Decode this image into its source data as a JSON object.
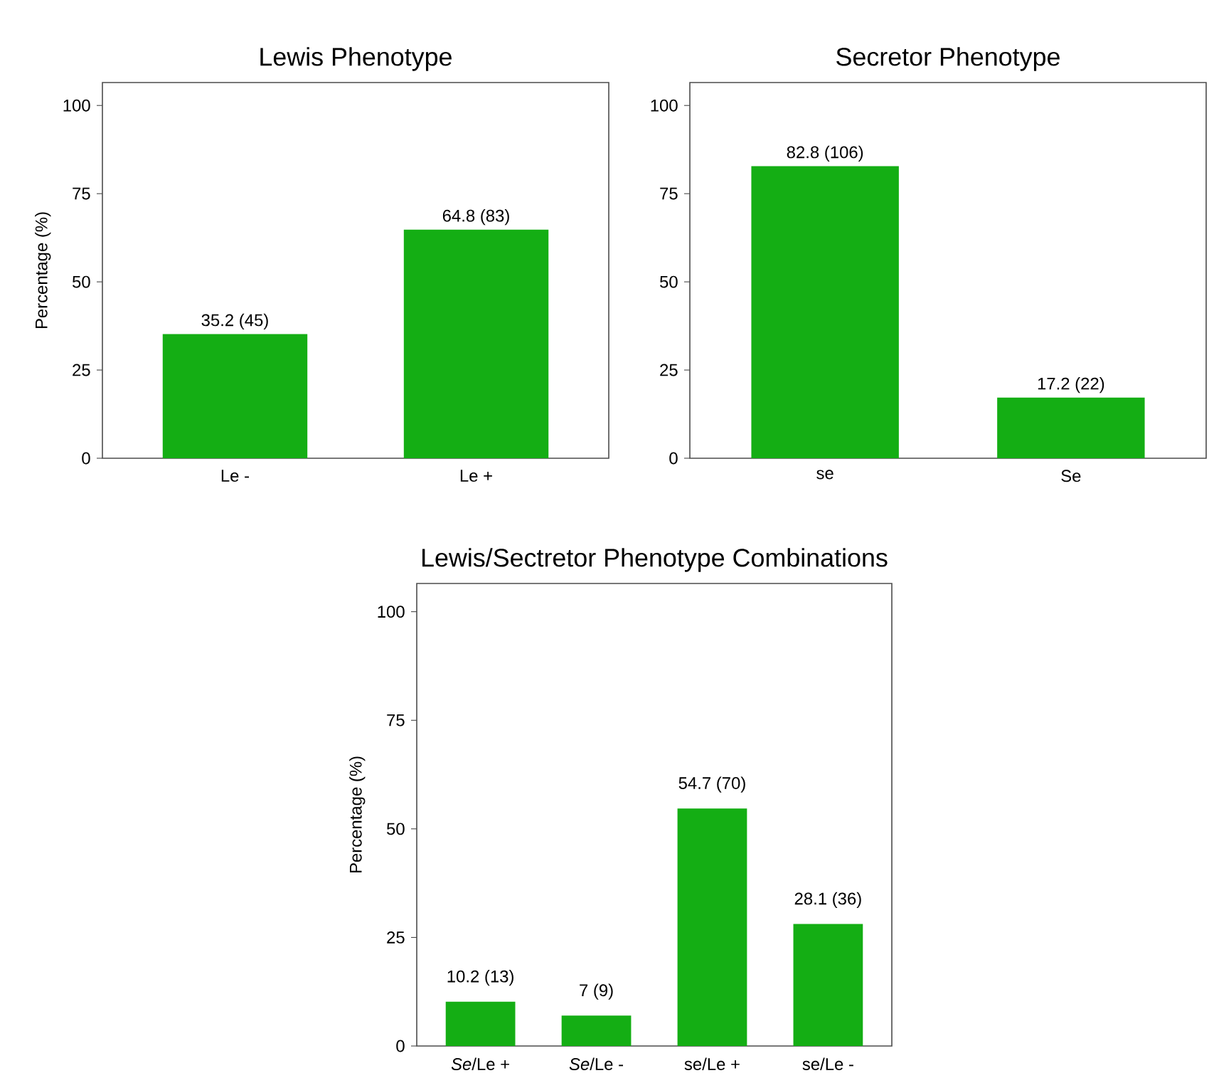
{
  "chart_data": [
    {
      "type": "bar",
      "title": "Lewis Phenotype",
      "ylabel": "Percentage (%)",
      "categories": [
        "Le -",
        "Le +"
      ],
      "values": [
        35.2,
        64.8
      ],
      "value_labels": [
        "35.2 (45)",
        "64.8 (83)"
      ],
      "color": "#14ae14",
      "ylim": [
        0,
        106.5
      ],
      "yticks": [
        0,
        25,
        50,
        75,
        100
      ]
    },
    {
      "type": "bar",
      "title": "Secretor Phenotype",
      "categories": [
        "se",
        "Se"
      ],
      "values": [
        82.8,
        17.2
      ],
      "value_labels": [
        "82.8 (106)",
        "17.2 (22)"
      ],
      "color": "#14ae14",
      "ylim": [
        0,
        106.5
      ],
      "yticks": [
        0,
        25,
        50,
        75,
        100
      ]
    },
    {
      "type": "bar",
      "title": "Lewis/Sectretor Phenotype Combinations",
      "ylabel": "Percentage (%)",
      "categories": [
        "*Se*/Le +",
        "*Se*/Le -",
        "se/Le +",
        "se/Le -"
      ],
      "values": [
        10.2,
        7,
        54.7,
        28.1
      ],
      "value_labels": [
        "10.2 (13)",
        "7 (9)",
        "54.7 (70)",
        "28.1 (36)"
      ],
      "color": "#14ae14",
      "ylim": [
        0,
        106.5
      ],
      "yticks": [
        0,
        25,
        50,
        75,
        100
      ]
    }
  ]
}
